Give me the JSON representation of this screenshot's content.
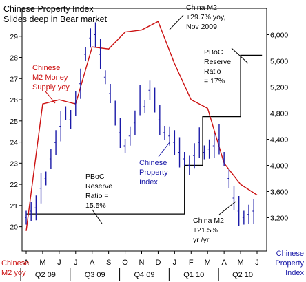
{
  "chart_data": {
    "type": "line",
    "title_lines": [
      "Chinese Property Index",
      "Slides deep in Bear market"
    ],
    "x_months": [
      "A",
      "M",
      "J",
      "J",
      "A",
      "S",
      "O",
      "N",
      "D",
      "J",
      "F",
      "M",
      "A",
      "M",
      "J"
    ],
    "x_quarters": [
      "Q2 09",
      "Q3 09",
      "Q4 09",
      "Q1 10",
      "Q2 10"
    ],
    "left_axis": {
      "label": "Chinese M2 yoy",
      "ticks": [
        20,
        21,
        22,
        23,
        24,
        25,
        26,
        27,
        28,
        29
      ],
      "ylim": [
        19.5,
        30
      ]
    },
    "right_axis": {
      "label": "Chinese Property Index",
      "ticks": [
        "3,200",
        "3,600",
        "4,000",
        "4,400",
        "4,800",
        "5,200",
        "5,600",
        "6,000"
      ],
      "values": [
        3200,
        3600,
        4000,
        4400,
        4800,
        5200,
        5600,
        6000
      ],
      "ylim": [
        2900,
        6300
      ]
    },
    "series": [
      {
        "name": "Chinese M2 Money Supply yoy",
        "color": "#cc1111",
        "axis": "left",
        "x": [
          0,
          1,
          2,
          3,
          4,
          5,
          6,
          7,
          8,
          9,
          10,
          11,
          12,
          13,
          14
        ],
        "values": [
          19.8,
          25.8,
          26.0,
          25.8,
          28.5,
          28.4,
          29.2,
          29.3,
          29.7,
          27.7,
          26.0,
          25.6,
          23.0,
          22.0,
          21.5
        ]
      },
      {
        "name": "Chinese Property Index",
        "color": "#1a1aa8",
        "axis": "right",
        "x": [
          0,
          0.3,
          0.6,
          0.9,
          1.2,
          1.5,
          1.8,
          2.1,
          2.4,
          2.7,
          3.0,
          3.3,
          3.6,
          3.9,
          4.2,
          4.5,
          4.8,
          5.1,
          5.4,
          5.7,
          6.0,
          6.3,
          6.6,
          6.9,
          7.2,
          7.5,
          7.8,
          8.1,
          8.4,
          8.7,
          9.0,
          9.3,
          9.6,
          9.9,
          10.2,
          10.5,
          10.8,
          11.1,
          11.4,
          11.7,
          12.0,
          12.3,
          12.6,
          12.9,
          13.2,
          13.5,
          13.8
        ],
        "values": [
          3200,
          3300,
          3350,
          3650,
          3800,
          4100,
          4350,
          4600,
          4800,
          4700,
          4950,
          5250,
          5700,
          5950,
          6000,
          5700,
          5350,
          5100,
          4800,
          4500,
          4300,
          4450,
          4650,
          5000,
          4900,
          5150,
          5000,
          4700,
          4500,
          4450,
          4350,
          4200,
          4100,
          4000,
          4150,
          4350,
          4200,
          4250,
          4300,
          4400,
          4100,
          3800,
          3500,
          3300,
          3200,
          3250,
          3300
        ]
      },
      {
        "name": "PBoC Reserve Ratio",
        "color": "#000000",
        "axis": "left",
        "steps": [
          {
            "from": 0,
            "to": 9.6,
            "value": 20.6
          },
          {
            "from": 9.6,
            "to": 10.7,
            "value": 22.9
          },
          {
            "from": 10.7,
            "to": 11.1,
            "value": 25.2
          },
          {
            "from": 11.1,
            "to": 13.0,
            "value": 25.2
          },
          {
            "from": 13.0,
            "to": 14.3,
            "value": 28.1
          }
        ]
      }
    ],
    "annotations": {
      "m2_peak": [
        "China M2",
        "+29.7% yoy,",
        "Nov 2009"
      ],
      "m2_label": [
        "Chinese",
        "M2 Money",
        "Supply yoy"
      ],
      "pboc_high": [
        "PBoC",
        "Reserve",
        "Ratio",
        "= 17%"
      ],
      "pboc_low": [
        "PBoC",
        "Reserve",
        "Ratio =",
        "15.5%"
      ],
      "prop_label": [
        "Chinese",
        "Property",
        "Index"
      ],
      "m2_now": [
        "China M2",
        "+21.5%",
        "yr /yr"
      ]
    }
  }
}
